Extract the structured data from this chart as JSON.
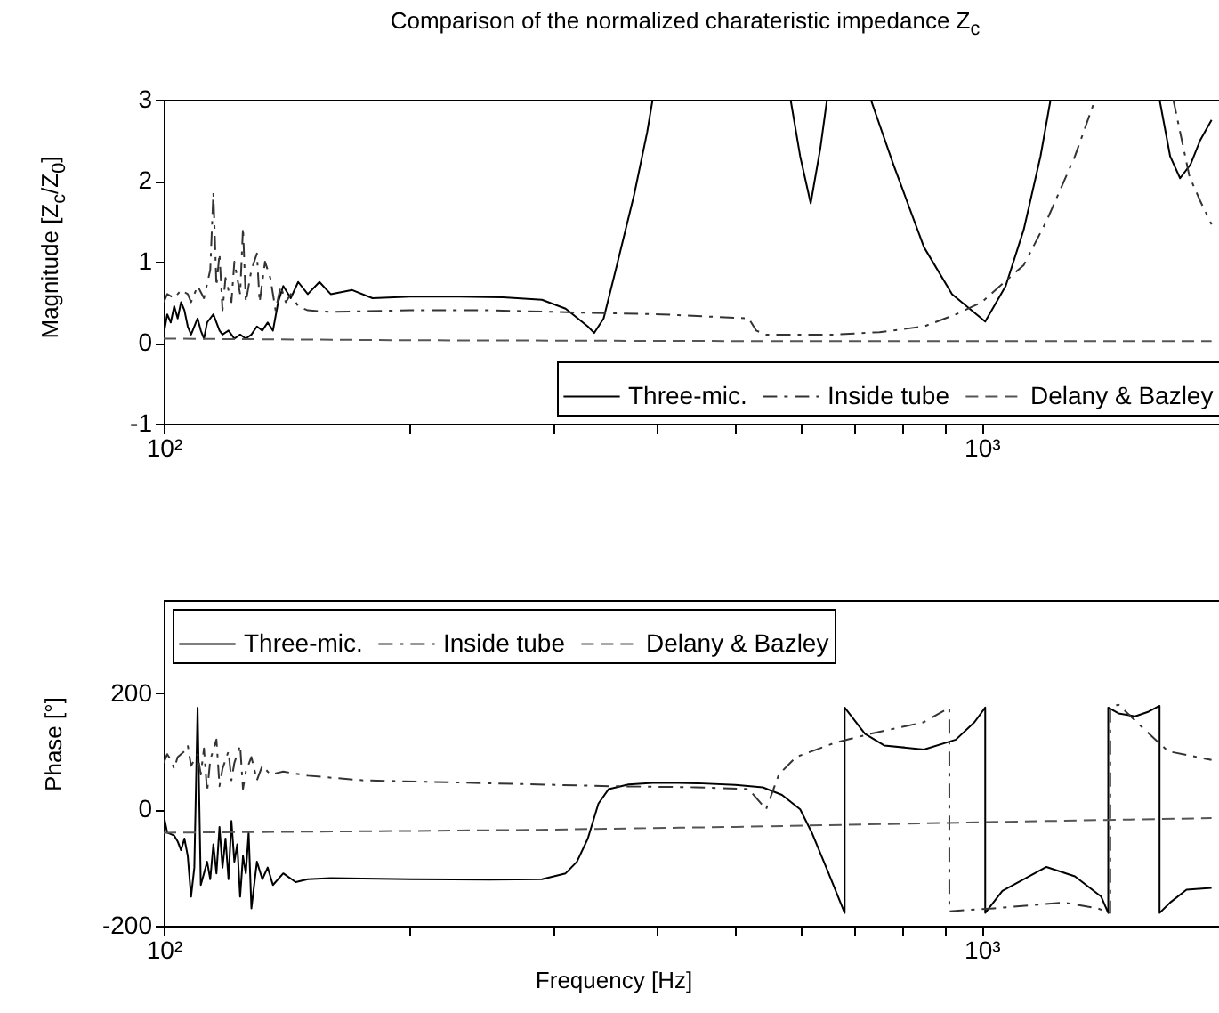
{
  "chart_data": [
    {
      "type": "line",
      "title": "Comparison of the normalized charateristic impedance Z$_{c}$",
      "ylabel": "Magnitude [Z$_{c}$/Z$_{0}$]",
      "log": "x",
      "legend": "bottom right",
      "xlim": [
        100,
        2000
      ],
      "xticks": [
        {
          "value": 100,
          "label": "10²"
        },
        {
          "value": 200,
          "label": null
        },
        {
          "value": 300,
          "label": null
        },
        {
          "value": 400,
          "label": null
        },
        {
          "value": 500,
          "label": null
        },
        {
          "value": 600,
          "label": null
        },
        {
          "value": 700,
          "label": null
        },
        {
          "value": 800,
          "label": null
        },
        {
          "value": 900,
          "label": null
        },
        {
          "value": 1000,
          "label": "10³"
        },
        {
          "value": 2000,
          "label": null
        }
      ],
      "ylim": [
        -1,
        3
      ],
      "yticks": [
        -1,
        0,
        1,
        2,
        3
      ],
      "series": [
        {
          "name": "Three-mic.",
          "color": "#000000",
          "line_style": "solid",
          "x": [
            100,
            101,
            102,
            103,
            104,
            105,
            106,
            107,
            108,
            110,
            111,
            112,
            113,
            115,
            117,
            118,
            120,
            122,
            124,
            126,
            128,
            130,
            132,
            134,
            136,
            138,
            140,
            143,
            146,
            150,
            155,
            160,
            170,
            180,
            200,
            230,
            260,
            290,
            310,
            330,
            336,
            345,
            358,
            376,
            390,
            396,
            490,
            584,
            600,
            618,
            635,
            647,
            690,
            732,
            780,
            850,
            920,
            1010,
            1070,
            1126,
            1180,
            1214,
            1400,
            1650,
            1700,
            1748,
            1800,
            1850,
            1910
          ],
          "values": [
            0.1,
            0.35,
            0.25,
            0.45,
            0.3,
            0.5,
            0.4,
            0.2,
            0.1,
            0.3,
            0.15,
            0.05,
            0.25,
            0.35,
            0.15,
            0.1,
            0.15,
            0.05,
            0.1,
            0.05,
            0.1,
            0.2,
            0.15,
            0.25,
            0.15,
            0.5,
            0.7,
            0.55,
            0.75,
            0.6,
            0.75,
            0.6,
            0.65,
            0.55,
            0.57,
            0.57,
            0.56,
            0.53,
            0.42,
            0.2,
            0.12,
            0.3,
            0.95,
            1.83,
            2.6,
            3,
            null,
            3,
            2.3,
            1.72,
            2.4,
            3,
            null,
            3,
            2.2,
            1.18,
            0.6,
            0.26,
            0.7,
            1.4,
            2.3,
            3,
            null,
            3,
            2.3,
            2.03,
            2.2,
            2.5,
            2.75
          ]
        },
        {
          "name": "Inside tube",
          "color": "#333333",
          "line_style": "dashdot",
          "x": [
            100,
            101,
            103,
            105,
            107,
            108,
            110,
            112,
            114,
            115,
            116,
            117,
            118,
            119,
            121,
            122,
            124,
            125,
            126,
            128,
            130,
            131,
            133,
            135,
            137,
            139,
            141,
            143,
            146,
            150,
            160,
            200,
            250,
            330,
            406,
            519,
            530,
            545,
            600,
            663,
            750,
            850,
            930,
            1000,
            1126,
            1200,
            1300,
            1376,
            1500,
            1715,
            1795,
            1850,
            1910
          ],
          "values": [
            0.5,
            0.6,
            0.55,
            0.65,
            0.6,
            0.5,
            0.7,
            0.55,
            0.9,
            1.85,
            0.7,
            1.1,
            0.4,
            0.8,
            0.5,
            1.0,
            0.6,
            1.42,
            0.5,
            0.9,
            1.1,
            0.5,
            1.0,
            0.8,
            0.4,
            0.7,
            0.5,
            0.6,
            0.45,
            0.4,
            0.38,
            0.4,
            0.4,
            0.37,
            0.35,
            0.3,
            0.15,
            0.1,
            0.1,
            0.1,
            0.13,
            0.2,
            0.35,
            0.5,
            0.96,
            1.5,
            2.3,
            3,
            null,
            3,
            2.05,
            1.75,
            1.46
          ]
        },
        {
          "name": "Delany & Bazley",
          "color": "#555555",
          "line_style": "dashed",
          "x": [
            100,
            200,
            500,
            1000,
            1910
          ],
          "values": [
            0.05,
            0.03,
            0.02,
            0.02,
            0.02
          ]
        }
      ]
    },
    {
      "type": "line",
      "xlabel": "Frequency [Hz]",
      "ylabel": "Phase [°]",
      "log": "x",
      "legend": "top left",
      "xlim": [
        100,
        2000
      ],
      "xticks": [
        {
          "value": 100,
          "label": "10²"
        },
        {
          "value": 200,
          "label": null
        },
        {
          "value": 300,
          "label": null
        },
        {
          "value": 400,
          "label": null
        },
        {
          "value": 500,
          "label": null
        },
        {
          "value": 600,
          "label": null
        },
        {
          "value": 700,
          "label": null
        },
        {
          "value": 800,
          "label": null
        },
        {
          "value": 900,
          "label": null
        },
        {
          "value": 1000,
          "label": "10³"
        },
        {
          "value": 2000,
          "label": null
        }
      ],
      "ylim": [
        -200,
        360
      ],
      "yticks": [
        -200,
        0,
        200
      ],
      "series": [
        {
          "name": "Three-mic.",
          "color": "#000000",
          "line_style": "solid",
          "x": [
            100,
            101,
            103,
            104,
            105,
            106,
            107,
            108,
            109,
            110,
            111,
            112,
            113,
            114,
            115,
            116,
            117,
            118,
            119,
            120,
            121,
            122,
            123,
            124,
            125,
            126,
            127,
            128,
            130,
            132,
            134,
            136,
            140,
            145,
            150,
            160,
            200,
            250,
            290,
            310,
            320,
            330,
            340,
            350,
            370,
            400,
            450,
            500,
            540,
            570,
            600,
            620,
            650,
            680,
            680,
            720,
            760,
            850,
            930,
            980,
            1010,
            1010,
            1060,
            1200,
            1300,
            1400,
            1428,
            1428,
            1470,
            1540,
            1600,
            1650,
            1650,
            1700,
            1780,
            1910
          ],
          "values": [
            -10,
            -40,
            -45,
            -55,
            -70,
            -50,
            -80,
            -150,
            -100,
            175,
            -130,
            -110,
            -90,
            -120,
            -60,
            -110,
            -30,
            -100,
            -50,
            -120,
            -20,
            -90,
            -60,
            -150,
            -80,
            -110,
            -40,
            -170,
            -90,
            -120,
            -100,
            -130,
            -110,
            -125,
            -120,
            -118,
            -120,
            -121,
            -120,
            -110,
            -90,
            -50,
            10,
            35,
            43,
            46,
            45,
            42,
            38,
            25,
            0,
            -40,
            -110,
            -178,
            175,
            130,
            110,
            103,
            120,
            150,
            175,
            -178,
            -140,
            -99,
            -115,
            -150,
            -178,
            175,
            165,
            160,
            168,
            178,
            -178,
            -160,
            -138,
            -135
          ]
        },
        {
          "name": "Inside tube",
          "color": "#333333",
          "line_style": "dashdot",
          "x": [
            100,
            101,
            102,
            103,
            104,
            106,
            107,
            108,
            110,
            111,
            112,
            113,
            114,
            116,
            117,
            118,
            120,
            121,
            122,
            124,
            125,
            126,
            128,
            130,
            132,
            135,
            140,
            150,
            175,
            250,
            350,
            447,
            519,
            545,
            565,
            593,
            663,
            732,
            850,
            913,
            913,
            1035,
            1260,
            1386,
            1436,
            1436,
            1470,
            1574,
            1690,
            1910
          ],
          "values": [
            80,
            95,
            85,
            70,
            90,
            100,
            110,
            75,
            95,
            60,
            105,
            30,
            85,
            120,
            40,
            70,
            100,
            50,
            80,
            110,
            35,
            65,
            90,
            50,
            75,
            60,
            65,
            58,
            50,
            45,
            40,
            38,
            35,
            0,
            60,
            90,
            115,
            130,
            150,
            175,
            -175,
            -170,
            -160,
            -170,
            -178,
            175,
            180,
            140,
            100,
            85
          ]
        },
        {
          "name": "Delany & Bazley",
          "color": "#555555",
          "line_style": "dashed",
          "x": [
            100,
            200,
            287,
            500,
            770,
            1200,
            1910
          ],
          "values": [
            -40,
            -37,
            -35,
            -30,
            -25,
            -20,
            -15
          ]
        }
      ]
    }
  ]
}
